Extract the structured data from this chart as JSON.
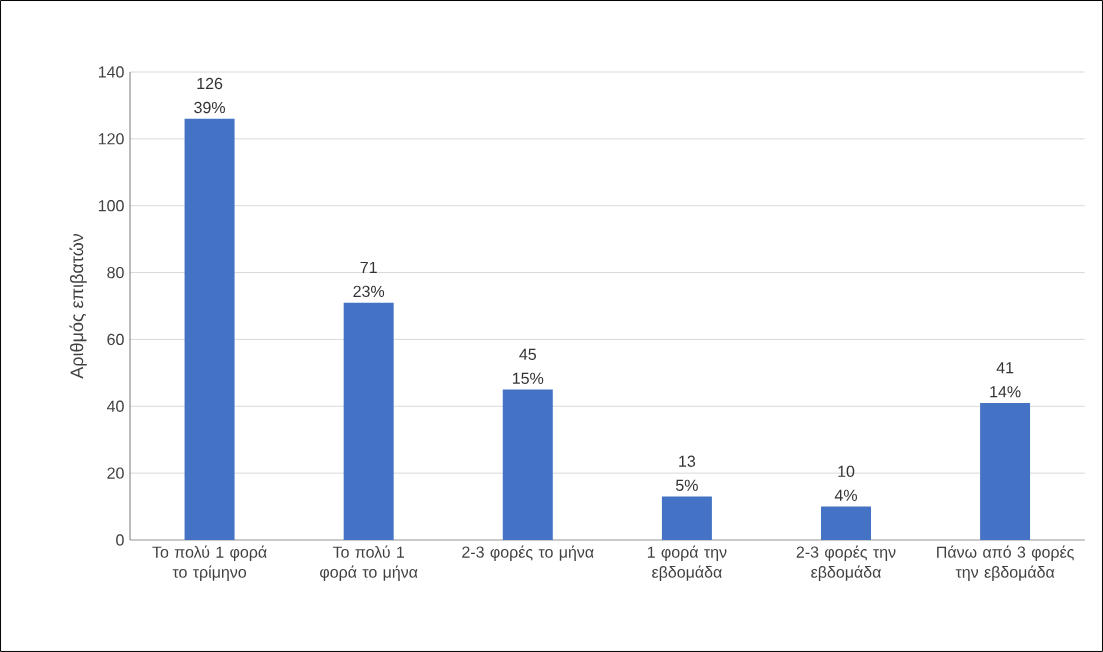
{
  "chart_data": {
    "type": "bar",
    "ylabel": "Αριθμός επιβατών",
    "categories": [
      "Το πολύ 1 φορά το τρίμηνο",
      "Το πολύ 1 φορά το μήνα",
      "2-3 φορές το μήνα",
      "1 φορά την εβδομάδα",
      "2-3 φορές την εβδομάδα",
      "Πάνω από 3 φορές την εβδομάδα"
    ],
    "values": [
      126,
      71,
      45,
      13,
      10,
      41
    ],
    "value_labels": [
      "126 39%",
      "71 23%",
      "45 15%",
      "13 5%",
      "10 4%",
      "41 14%"
    ],
    "color": "#4472c4",
    "ylim": [
      0,
      140
    ],
    "yticks": [
      0,
      20,
      40,
      60,
      80,
      100,
      120,
      140
    ],
    "grid": "y"
  }
}
